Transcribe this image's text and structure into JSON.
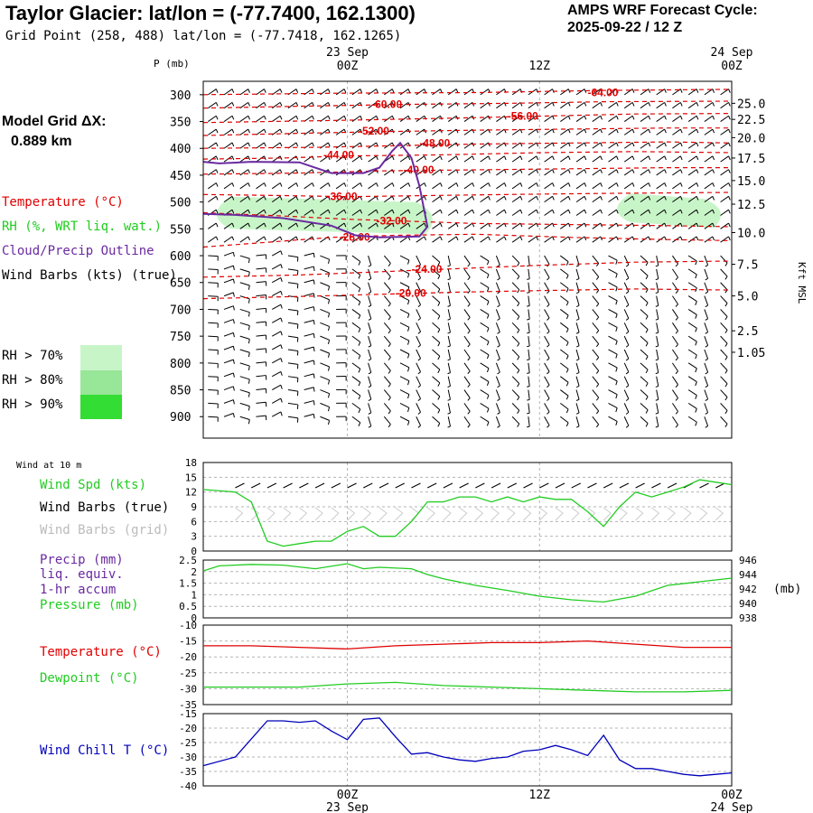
{
  "header": {
    "title": "Taylor Glacier:  lat/lon = (-77.7400, 162.1300)",
    "grid_point": "Grid Point (258, 488) lat/lon = (-77.7418, 162.1265)",
    "cycle_line1": "AMPS WRF Forecast Cycle:",
    "cycle_line2": "2025-09-22 / 12  Z"
  },
  "legend": {
    "model_grid_label": "Model Grid ΔX:",
    "model_grid_value": "0.889 km",
    "temperature": "Temperature (°C)",
    "rh": "RH (%, WRT liq. wat.)",
    "cloud": "Cloud/Precip Outline",
    "wind": "Wind Barbs (kts) (true)",
    "rh70": "RH > 70%",
    "rh80": "RH > 80%",
    "rh90": "RH > 90%"
  },
  "colors": {
    "temp": "#e00000",
    "cloud": "#6a2aa0",
    "rh70": "#c8f5c8",
    "rh80": "#98e698",
    "rh90": "#33dd33",
    "green_line": "#22cc22",
    "blue_line": "#0000bb",
    "grid_grey": "#b4b4b4"
  },
  "time_axis": {
    "top_labels": [
      {
        "upper": "23 Sep",
        "lower": "00Z"
      },
      {
        "upper": "",
        "lower": "12Z"
      },
      {
        "upper": "24 Sep",
        "lower": "00Z"
      }
    ],
    "bottom_labels": [
      {
        "upper": "00Z",
        "lower": "23 Sep"
      },
      {
        "upper": "12Z",
        "lower": ""
      },
      {
        "upper": "00Z",
        "lower": "24 Sep"
      }
    ]
  },
  "chart_data": [
    {
      "type": "contour",
      "name": "upper-air",
      "y_axis_label": "P (mb)",
      "right_axis_label": "Kft MSL",
      "y_range": [
        275,
        940
      ],
      "x_range_hours": [
        -9,
        24
      ],
      "pressure_ticks": [
        300,
        350,
        400,
        450,
        500,
        550,
        600,
        650,
        700,
        750,
        800,
        850,
        900
      ],
      "height_ticks": [
        {
          "label": "25.0",
          "p": 316
        },
        {
          "label": "22.5",
          "p": 346
        },
        {
          "label": "20.0",
          "p": 380
        },
        {
          "label": "17.5",
          "p": 418
        },
        {
          "label": "15.0",
          "p": 460
        },
        {
          "label": "12.5",
          "p": 504
        },
        {
          "label": "10.0",
          "p": 557
        },
        {
          "label": "7.5",
          "p": 616
        },
        {
          "label": "5.0",
          "p": 675
        },
        {
          "label": "2.5",
          "p": 740
        },
        {
          "label": "1.05",
          "p": 780
        }
      ],
      "temperature_contours": [
        {
          "label": "-64.00",
          "label_x": 15,
          "label_p": 296,
          "points": [
            [
              -9,
              300
            ],
            [
              0,
              297
            ],
            [
              8,
              296
            ],
            [
              16,
              292
            ],
            [
              24,
              290
            ]
          ]
        },
        {
          "label": "-60.00",
          "label_x": 1.5,
          "label_p": 318,
          "points": [
            [
              -9,
              325
            ],
            [
              -2,
              321
            ],
            [
              4,
              318
            ],
            [
              10,
              316
            ],
            [
              16,
              313
            ],
            [
              24,
              312
            ]
          ]
        },
        {
          "label": "-56.00",
          "label_x": 10,
          "label_p": 340,
          "points": [
            [
              -9,
              352
            ],
            [
              -1,
              348
            ],
            [
              6,
              344
            ],
            [
              12,
              340
            ],
            [
              18,
              336
            ],
            [
              24,
              335
            ]
          ]
        },
        {
          "label": "-52.00",
          "label_x": 0.7,
          "label_p": 368,
          "points": [
            [
              -9,
              376
            ],
            [
              -3,
              372
            ],
            [
              2,
              369
            ],
            [
              8,
              366
            ],
            [
              14,
              364
            ],
            [
              20,
              362
            ],
            [
              24,
              362
            ]
          ]
        },
        {
          "label": "-48.00",
          "label_x": 4.5,
          "label_p": 390,
          "points": [
            [
              -9,
              400
            ],
            [
              -2,
              398
            ],
            [
              3,
              395
            ],
            [
              8,
              392
            ],
            [
              14,
              390
            ],
            [
              20,
              388
            ],
            [
              24,
              390
            ]
          ]
        },
        {
          "label": "-44.00",
          "label_x": -1.5,
          "label_p": 412,
          "points": [
            [
              -9,
              420
            ],
            [
              -4,
              418
            ],
            [
              0,
              414
            ],
            [
              6,
              412
            ],
            [
              12,
              408
            ],
            [
              18,
              406
            ],
            [
              24,
              408
            ]
          ]
        },
        {
          "label": "-40.00",
          "label_x": 3.5,
          "label_p": 440,
          "points": [
            [
              -9,
              448
            ],
            [
              -3,
              446
            ],
            [
              2,
              442
            ],
            [
              8,
              440
            ],
            [
              14,
              438
            ],
            [
              20,
              436
            ],
            [
              24,
              436
            ]
          ]
        },
        {
          "label": "-36.00",
          "label_x": -1.3,
          "label_p": 490,
          "points": [
            [
              -9,
              486
            ],
            [
              -4,
              488
            ],
            [
              0,
              490
            ],
            [
              5,
              488
            ],
            [
              10,
              486
            ],
            [
              16,
              484
            ],
            [
              24,
              482
            ]
          ]
        },
        {
          "label": "-32.00",
          "label_x": 1.8,
          "label_p": 535,
          "points": [
            [
              -9,
              520
            ],
            [
              -4,
              526
            ],
            [
              0,
              532
            ],
            [
              4,
              536
            ],
            [
              8,
              540
            ],
            [
              14,
              542
            ],
            [
              20,
              544
            ],
            [
              24,
              546
            ]
          ]
        },
        {
          "label": "-28.00",
          "label_x": -0.5,
          "label_p": 565,
          "points": [
            [
              -9,
              584
            ],
            [
              -5,
              575
            ],
            [
              -1,
              566
            ],
            [
              3,
              562
            ],
            [
              8,
              560
            ],
            [
              14,
              566
            ],
            [
              20,
              570
            ],
            [
              24,
              572
            ]
          ]
        },
        {
          "label": "-24.00",
          "label_x": 4,
          "label_p": 625,
          "points": [
            [
              -9,
              640
            ],
            [
              -3,
              636
            ],
            [
              2,
              630
            ],
            [
              7,
              624
            ],
            [
              12,
              618
            ],
            [
              18,
              612
            ],
            [
              24,
              610
            ]
          ]
        },
        {
          "label": "-20.00",
          "label_x": 3,
          "label_p": 670,
          "points": [
            [
              -9,
              680
            ],
            [
              -3,
              676
            ],
            [
              2,
              672
            ],
            [
              7,
              668
            ],
            [
              12,
              665
            ],
            [
              18,
              662
            ],
            [
              24,
              664
            ]
          ]
        }
      ],
      "rh_regions": [
        {
          "level": "70",
          "hours": [
            -9,
            6
          ],
          "p": [
            490,
            560
          ]
        },
        {
          "level": "70",
          "hours": [
            16,
            24
          ],
          "p": [
            484,
            548
          ]
        }
      ],
      "cloud_outline": [
        [
          -9,
          425
        ],
        [
          -8,
          428
        ],
        [
          -6,
          425
        ],
        [
          -3,
          426
        ],
        [
          -1,
          446
        ],
        [
          1,
          446
        ],
        [
          2,
          436
        ],
        [
          2.8,
          405
        ],
        [
          3.3,
          390
        ],
        [
          4,
          418
        ],
        [
          4.5,
          470
        ],
        [
          5,
          546
        ],
        [
          4.5,
          564
        ],
        [
          2,
          566
        ],
        [
          0.5,
          562
        ],
        [
          -1,
          544
        ],
        [
          -4,
          530
        ],
        [
          -7,
          524
        ],
        [
          -9,
          522
        ]
      ],
      "wind_barbs_note": "Wind barbs drawn at every column and pressure level"
    },
    {
      "type": "line",
      "name": "wind-at-10m",
      "title": "Wind at 10 m",
      "ylim": [
        0,
        18
      ],
      "yticks": [
        0,
        3,
        6,
        9,
        12,
        15,
        18
      ],
      "legend": [
        "Wind Spd (kts)",
        "Wind Barbs (true)",
        "Wind Barbs (grid)"
      ],
      "series": [
        {
          "name": "Wind Spd (kts)",
          "x": [
            -9,
            -7,
            -6,
            -5,
            -4,
            -3,
            -2,
            -1,
            0,
            1,
            2,
            3,
            4,
            5,
            6,
            7,
            8,
            9,
            10,
            11,
            12,
            13,
            14,
            15,
            16,
            17,
            18,
            19,
            20,
            21,
            22,
            23,
            24
          ],
          "values": [
            12.5,
            12,
            10,
            2,
            1,
            1.5,
            2,
            2,
            4,
            5,
            3,
            3,
            6,
            10,
            10,
            11,
            11,
            10,
            11,
            10,
            11,
            10.5,
            10.5,
            8,
            5,
            9,
            12,
            11,
            12,
            13,
            14.5,
            14,
            13.5
          ]
        }
      ]
    },
    {
      "type": "line",
      "name": "precip-pressure",
      "legend": [
        "Precip (mm)",
        "liq. equiv.",
        "1-hr accum",
        "Pressure (mb)"
      ],
      "ylim": [
        0,
        2.5
      ],
      "yticks": [
        0,
        0.5,
        1.0,
        1.5,
        2.0,
        2.5
      ],
      "right_ylim": [
        938,
        946
      ],
      "right_yticks": [
        938,
        940,
        942,
        944,
        946
      ],
      "right_label": "(mb)",
      "series": [
        {
          "name": "Pressure (mb)",
          "x": [
            -9,
            -8,
            -6,
            -4,
            -2,
            0,
            1,
            2,
            4,
            5,
            6,
            8,
            10,
            12,
            14,
            16,
            18,
            20,
            22,
            24
          ],
          "values": [
            944.5,
            945.2,
            945.4,
            945.3,
            944.8,
            945.5,
            944.8,
            945.0,
            944.8,
            944.0,
            943.4,
            942.5,
            941.8,
            941.0,
            940.5,
            940.2,
            941.0,
            942.5,
            943.0,
            943.5
          ]
        }
      ]
    },
    {
      "type": "line",
      "name": "temperature-dewpoint",
      "legend": [
        "Temperature (°C)",
        "Dewpoint (°C)"
      ],
      "ylim": [
        -35,
        -10
      ],
      "yticks": [
        -35,
        -30,
        -25,
        -20,
        -15,
        -10
      ],
      "series": [
        {
          "name": "Temperature (°C)",
          "x": [
            -9,
            -6,
            -3,
            0,
            3,
            6,
            9,
            12,
            15,
            18,
            21,
            24
          ],
          "values": [
            -16.5,
            -16.5,
            -17,
            -17.5,
            -16.5,
            -16,
            -15.5,
            -15.5,
            -15,
            -16,
            -17,
            -17
          ]
        },
        {
          "name": "Dewpoint (°C)",
          "x": [
            -9,
            -6,
            -3,
            0,
            3,
            6,
            9,
            12,
            15,
            18,
            21,
            24
          ],
          "values": [
            -29.5,
            -29.5,
            -29.5,
            -28.5,
            -28,
            -29,
            -29.5,
            -30,
            -30.5,
            -31,
            -31,
            -30.5
          ]
        }
      ]
    },
    {
      "type": "line",
      "name": "wind-chill",
      "legend": [
        "Wind Chill T (°C)"
      ],
      "ylim": [
        -40,
        -15
      ],
      "yticks": [
        -40,
        -35,
        -30,
        -25,
        -20,
        -15
      ],
      "series": [
        {
          "name": "Wind Chill T (°C)",
          "x": [
            -9,
            -7,
            -5,
            -4,
            -3,
            -2,
            -1,
            0,
            1,
            2,
            3,
            4,
            5,
            6,
            7,
            8,
            9,
            10,
            11,
            12,
            13,
            14,
            15,
            16,
            17,
            18,
            19,
            20,
            21,
            22,
            23,
            24
          ],
          "values": [
            -33,
            -30,
            -17.5,
            -17.5,
            -18,
            -17.5,
            -21,
            -24,
            -17,
            -16.5,
            -23,
            -29,
            -28.5,
            -30,
            -31,
            -31.5,
            -30.5,
            -30,
            -28,
            -27.5,
            -26,
            -27.5,
            -29.5,
            -22.5,
            -31,
            -34,
            -34,
            -35,
            -36,
            -36.5,
            -36,
            -35.5
          ]
        }
      ]
    }
  ]
}
